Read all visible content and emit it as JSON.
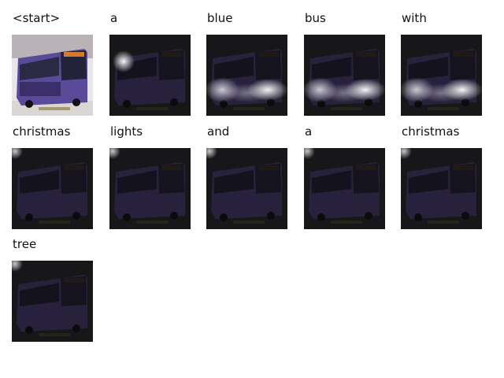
{
  "caption_tokens": [
    {
      "word": "<start>",
      "attention": "none"
    },
    {
      "word": "a",
      "attention": "left"
    },
    {
      "word": "blue",
      "attention": "bottom-wide"
    },
    {
      "word": "bus",
      "attention": "bottom-wide"
    },
    {
      "word": "with",
      "attention": "bottom-wide"
    },
    {
      "word": "christmas",
      "attention": "corner"
    },
    {
      "word": "lights",
      "attention": "corner"
    },
    {
      "word": "and",
      "attention": "corner"
    },
    {
      "word": "a",
      "attention": "corner"
    },
    {
      "word": "christmas",
      "attention": "corner"
    },
    {
      "word": "tree",
      "attention": "corner"
    }
  ],
  "colors": {
    "bus_body": "#5a4a9a",
    "bus_dark": "#3b2f6a",
    "background": "#ffffff"
  }
}
